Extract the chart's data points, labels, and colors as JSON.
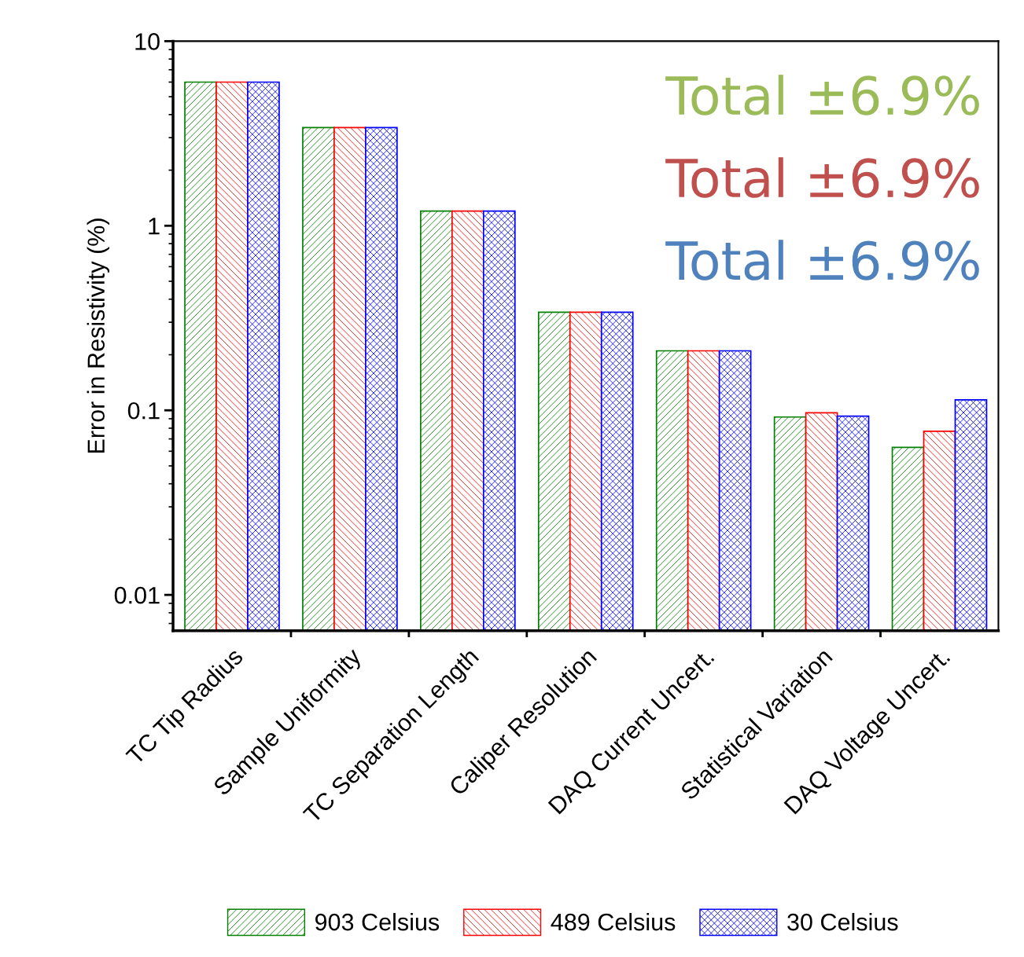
{
  "chart_data": {
    "type": "bar",
    "ylabel": "Error in Resistivity (%)",
    "categories": [
      "TC Tip Radius",
      "Sample Uniformity",
      "TC Separation Length",
      "Caliper Resolution",
      "DAQ Current Uncert.",
      "Statistical Variation",
      "DAQ Voltage Uncert."
    ],
    "series": [
      {
        "name": "903 Celsius",
        "color": "#008000",
        "values": [
          6.0,
          3.4,
          1.2,
          0.34,
          0.21,
          0.092,
          0.063
        ]
      },
      {
        "name": "489 Celsius",
        "color": "#ff0000",
        "values": [
          6.0,
          3.4,
          1.2,
          0.34,
          0.21,
          0.097,
          0.077
        ]
      },
      {
        "name": "30 Celsius",
        "color": "#0000ff",
        "values": [
          6.0,
          3.4,
          1.2,
          0.34,
          0.21,
          0.093,
          0.114
        ]
      }
    ],
    "log": "y",
    "ylim": [
      0.0064,
      10
    ],
    "yticks": [
      0.01,
      0.1,
      1,
      10
    ],
    "grid": false,
    "legend": "bottom",
    "annotations": [
      "Total ±6.9%",
      "Total ±6.9%",
      "Total ±6.9%"
    ]
  }
}
